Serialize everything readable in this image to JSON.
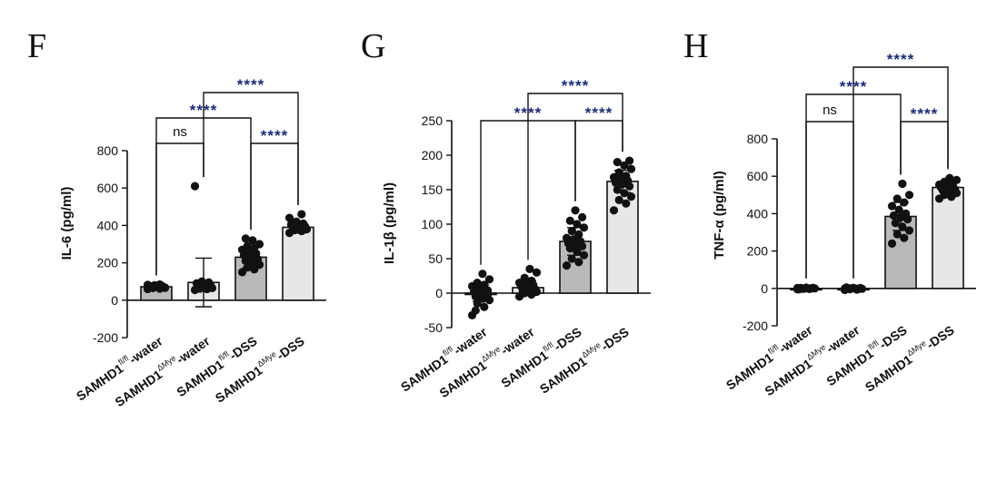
{
  "colors": {
    "bar_dark": "#b9b9b9",
    "bar_light": "#e6e8e6",
    "bar_stroke": "#111111",
    "point": "#111111",
    "sig_text": "#1a2a80",
    "axis": "#111111"
  },
  "chart_data": [
    {
      "panel": "F",
      "type": "bar",
      "ylabel": "IL-6 (pg/ml)",
      "ylim": [
        -200,
        800
      ],
      "yticks": [
        -200,
        0,
        200,
        400,
        600,
        800
      ],
      "categories": [
        {
          "base": "SAMHD1",
          "sup": "fl/fl",
          "suffix": "-water"
        },
        {
          "base": "SAMHD1",
          "sup": "ΔMye",
          "suffix": "-water"
        },
        {
          "base": "SAMHD1",
          "sup": "fl/fl",
          "suffix": "-DSS"
        },
        {
          "base": "SAMHD1",
          "sup": "ΔMye",
          "suffix": "-DSS"
        }
      ],
      "values": [
        72,
        95,
        230,
        390
      ],
      "errors": [
        10,
        130,
        55,
        30
      ],
      "bar_colors": [
        "#b9b9b9",
        "#e6e8e6",
        "#b9b9b9",
        "#e6e8e6"
      ],
      "points": [
        [
          60,
          62,
          65,
          68,
          70,
          72,
          72,
          75,
          76,
          78,
          80,
          82,
          84,
          70,
          66
        ],
        [
          55,
          60,
          62,
          65,
          70,
          75,
          80,
          85,
          90,
          95,
          100,
          610
        ],
        [
          150,
          165,
          175,
          190,
          200,
          210,
          220,
          230,
          240,
          250,
          260,
          270,
          280,
          290,
          300,
          320,
          330
        ],
        [
          360,
          370,
          375,
          380,
          385,
          390,
          395,
          400,
          405,
          410,
          420,
          440,
          460
        ]
      ],
      "comparisons": [
        {
          "from": 0,
          "to": 1,
          "label": "ns",
          "level": 0
        },
        {
          "from": 2,
          "to": 3,
          "label": "****",
          "level": 0
        },
        {
          "from": 0,
          "to": 2,
          "label": "****",
          "level": 1
        },
        {
          "from": 1,
          "to": 3,
          "label": "****",
          "level": 2
        }
      ]
    },
    {
      "panel": "G",
      "type": "bar",
      "ylabel": "IL-1β (pg/ml)",
      "ylim": [
        -50,
        250
      ],
      "yticks": [
        -50,
        0,
        50,
        100,
        150,
        200,
        250
      ],
      "categories": [
        {
          "base": "SAMHD1",
          "sup": "fl/fl",
          "suffix": "-water"
        },
        {
          "base": "SAMHD1",
          "sup": "ΔMye",
          "suffix": "-water"
        },
        {
          "base": "SAMHD1",
          "sup": "fl/fl",
          "suffix": "-DSS"
        },
        {
          "base": "SAMHD1",
          "sup": "ΔMye",
          "suffix": "-DSS"
        }
      ],
      "values": [
        0,
        8,
        75,
        162
      ],
      "errors": [
        12,
        10,
        20,
        16
      ],
      "bar_colors": [
        "#b9b9b9",
        "#e6e8e6",
        "#b9b9b9",
        "#e6e8e6"
      ],
      "points": [
        [
          -32,
          -20,
          -15,
          -10,
          -8,
          -5,
          -2,
          0,
          2,
          5,
          8,
          10,
          12,
          15,
          20,
          28,
          -25,
          4
        ],
        [
          -5,
          -2,
          0,
          2,
          4,
          5,
          6,
          8,
          10,
          12,
          14,
          15,
          18,
          22,
          30,
          35,
          3
        ],
        [
          40,
          45,
          50,
          55,
          60,
          65,
          68,
          70,
          72,
          75,
          78,
          80,
          85,
          90,
          95,
          100,
          105,
          110,
          120
        ],
        [
          120,
          130,
          135,
          140,
          145,
          150,
          155,
          158,
          160,
          163,
          165,
          168,
          170,
          175,
          180,
          185,
          190,
          192
        ]
      ],
      "comparisons": [
        {
          "from": 2,
          "to": 3,
          "label": "****",
          "level": 0
        },
        {
          "from": 0,
          "to": 2,
          "label": "****",
          "level": 0
        },
        {
          "from": 1,
          "to": 3,
          "label": "****",
          "level": 1
        }
      ]
    },
    {
      "panel": "H",
      "type": "bar",
      "ylabel": "TNF-α (pg/ml)",
      "ylim": [
        -200,
        800
      ],
      "yticks": [
        -200,
        0,
        200,
        400,
        600,
        800
      ],
      "categories": [
        {
          "base": "SAMHD1",
          "sup": "fl/fl",
          "suffix": "-water"
        },
        {
          "base": "SAMHD1",
          "sup": "ΔMye",
          "suffix": "-water"
        },
        {
          "base": "SAMHD1",
          "sup": "fl/fl",
          "suffix": "-DSS"
        },
        {
          "base": "SAMHD1",
          "sup": "ΔMye",
          "suffix": "-DSS"
        }
      ],
      "values": [
        0,
        0,
        385,
        540
      ],
      "errors": [
        5,
        5,
        75,
        30
      ],
      "bar_colors": [
        "#b9b9b9",
        "#e6e8e6",
        "#b9b9b9",
        "#e6e8e6"
      ],
      "points": [
        [
          -5,
          -3,
          -2,
          0,
          0,
          2,
          3,
          4,
          -4,
          1,
          -1,
          2
        ],
        [
          -8,
          -6,
          -4,
          -2,
          0,
          0,
          2,
          3,
          5,
          -3,
          1,
          -1
        ],
        [
          240,
          270,
          290,
          310,
          330,
          350,
          370,
          380,
          390,
          400,
          420,
          440,
          460,
          480,
          500,
          560
        ],
        [
          480,
          490,
          500,
          510,
          520,
          525,
          530,
          535,
          540,
          545,
          550,
          555,
          560,
          570,
          580,
          590
        ]
      ],
      "comparisons": [
        {
          "from": 0,
          "to": 1,
          "label": "ns",
          "level": 0
        },
        {
          "from": 2,
          "to": 3,
          "label": "****",
          "level": 0
        },
        {
          "from": 0,
          "to": 2,
          "label": "****",
          "level": 1
        },
        {
          "from": 1,
          "to": 3,
          "label": "****",
          "level": 2
        }
      ]
    }
  ]
}
